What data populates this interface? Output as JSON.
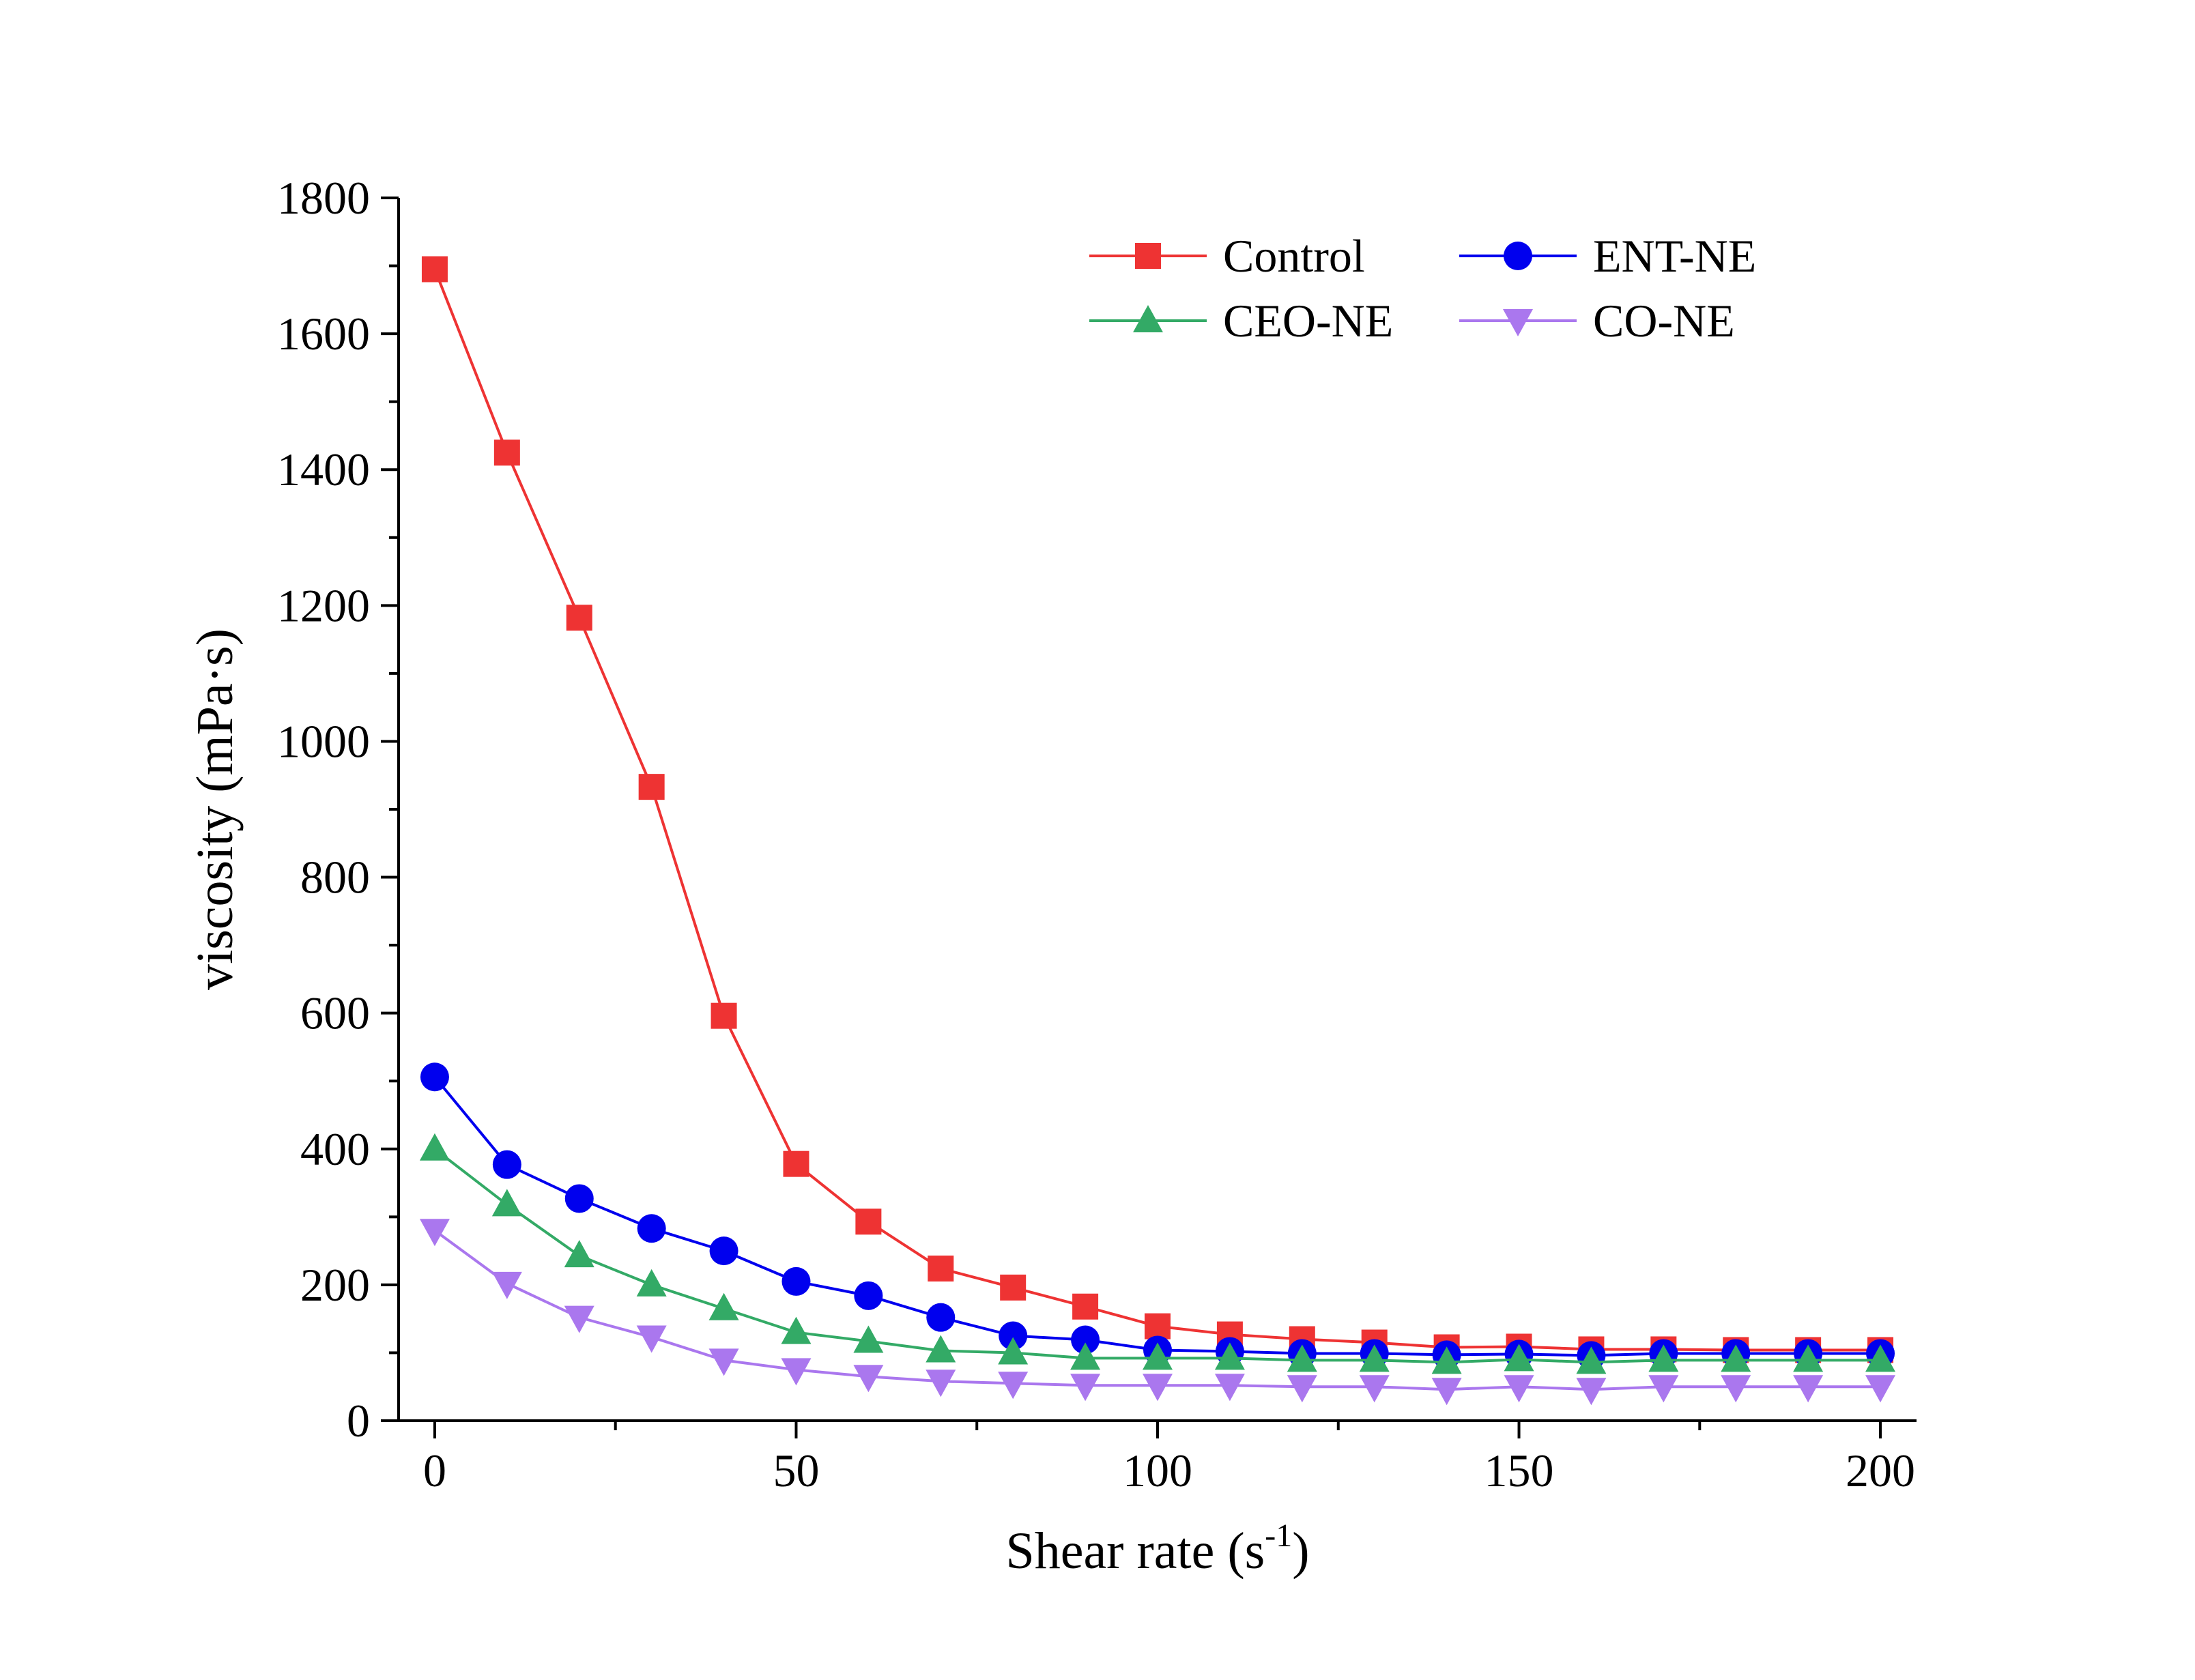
{
  "chart_data": {
    "type": "line",
    "title": "",
    "xlabel": "Shear rate (s",
    "xlabel_sup": "-1",
    "xlabel_close": ")",
    "ylabel": "viscosity (mPa·s)",
    "xlim": [
      -5,
      205
    ],
    "ylim": [
      0,
      1800
    ],
    "x_ticks": [
      0,
      50,
      100,
      150,
      200
    ],
    "y_ticks": [
      0,
      200,
      400,
      600,
      800,
      1000,
      1200,
      1400,
      1600,
      1800
    ],
    "x_tick_labels": [
      "0",
      "50",
      "100",
      "150",
      "200"
    ],
    "y_tick_labels": [
      "0",
      "200",
      "400",
      "600",
      "800",
      "1000",
      "1200",
      "1400",
      "1600",
      "1800"
    ],
    "grid": false,
    "legend_position": "top-right",
    "x": [
      0,
      10,
      20,
      30,
      40,
      50,
      60,
      70,
      80,
      90,
      100,
      110,
      120,
      130,
      140,
      150,
      160,
      170,
      180,
      190,
      200
    ],
    "series": [
      {
        "name": "Control",
        "color": "#ee3333",
        "marker": "square",
        "values": [
          1695,
          1425,
          1182,
          933,
          596,
          378,
          293,
          224,
          196,
          168,
          139,
          127,
          120,
          115,
          108,
          109,
          105,
          105,
          104,
          104,
          104
        ]
      },
      {
        "name": "ENT-NE",
        "color": "#0000ee",
        "marker": "circle",
        "values": [
          506,
          377,
          327,
          283,
          250,
          205,
          184,
          152,
          125,
          119,
          104,
          102,
          99,
          99,
          97,
          98,
          96,
          99,
          99,
          99,
          99
        ]
      },
      {
        "name": "CEO-NE",
        "color": "#33aa66",
        "marker": "triangle-up",
        "values": [
          400,
          318,
          243,
          200,
          165,
          130,
          117,
          103,
          100,
          92,
          92,
          92,
          89,
          89,
          86,
          90,
          86,
          89,
          89,
          89,
          89
        ]
      },
      {
        "name": "CO-NE",
        "color": "#aa77ee",
        "marker": "triangle-down",
        "values": [
          280,
          202,
          152,
          123,
          89,
          75,
          65,
          58,
          55,
          52,
          52,
          52,
          50,
          50,
          46,
          50,
          46,
          50,
          50,
          50,
          50
        ]
      }
    ]
  }
}
